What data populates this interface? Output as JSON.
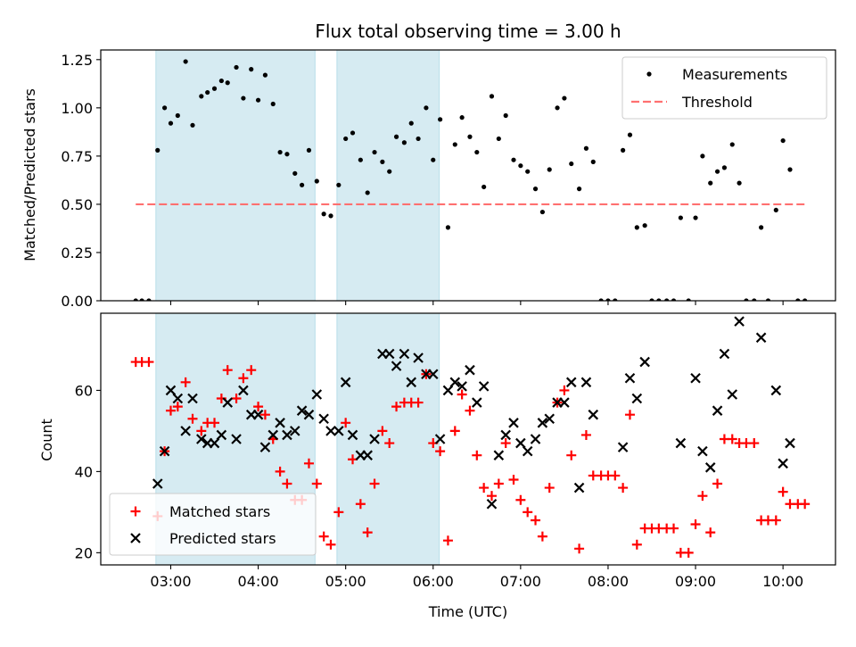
{
  "chart_data": [
    {
      "type": "scatter",
      "title": "Flux total observing time = 3.00 h",
      "ylabel": "Matched/Predicted stars",
      "xlabel": "",
      "xlim": [
        2.2,
        10.6
      ],
      "ylim": [
        0,
        1.3
      ],
      "yticks": [
        "0.00",
        "0.25",
        "0.50",
        "0.75",
        "1.00",
        "1.25"
      ],
      "ytick_values": [
        0,
        0.25,
        0.5,
        0.75,
        1.0,
        1.25
      ],
      "shaded_intervals": [
        [
          2.83,
          4.65
        ],
        [
          4.9,
          6.07
        ]
      ],
      "legend_position": "top-right",
      "threshold": {
        "name": "Threshold",
        "value": 0.5,
        "x_range": [
          2.6,
          10.25
        ],
        "color": "#ff7070"
      },
      "series": [
        {
          "name": "Measurements",
          "color": "#000000",
          "points": [
            [
              2.6,
              0
            ],
            [
              2.67,
              0
            ],
            [
              2.75,
              0
            ],
            [
              2.85,
              0.78
            ],
            [
              2.93,
              1.0
            ],
            [
              3.0,
              0.92
            ],
            [
              3.08,
              0.96
            ],
            [
              3.17,
              1.24
            ],
            [
              3.25,
              0.91
            ],
            [
              3.35,
              1.06
            ],
            [
              3.42,
              1.08
            ],
            [
              3.5,
              1.1
            ],
            [
              3.58,
              1.14
            ],
            [
              3.65,
              1.13
            ],
            [
              3.75,
              1.21
            ],
            [
              3.83,
              1.05
            ],
            [
              3.92,
              1.2
            ],
            [
              4.0,
              1.04
            ],
            [
              4.08,
              1.17
            ],
            [
              4.17,
              1.02
            ],
            [
              4.25,
              0.77
            ],
            [
              4.33,
              0.76
            ],
            [
              4.42,
              0.66
            ],
            [
              4.5,
              0.6
            ],
            [
              4.58,
              0.78
            ],
            [
              4.67,
              0.62
            ],
            [
              4.75,
              0.45
            ],
            [
              4.83,
              0.44
            ],
            [
              4.92,
              0.6
            ],
            [
              5.0,
              0.84
            ],
            [
              5.08,
              0.87
            ],
            [
              5.17,
              0.73
            ],
            [
              5.25,
              0.56
            ],
            [
              5.33,
              0.77
            ],
            [
              5.42,
              0.72
            ],
            [
              5.5,
              0.67
            ],
            [
              5.58,
              0.85
            ],
            [
              5.67,
              0.82
            ],
            [
              5.75,
              0.92
            ],
            [
              5.83,
              0.84
            ],
            [
              5.92,
              1.0
            ],
            [
              6.0,
              0.73
            ],
            [
              6.08,
              0.94
            ],
            [
              6.17,
              0.38
            ],
            [
              6.25,
              0.81
            ],
            [
              6.33,
              0.95
            ],
            [
              6.42,
              0.85
            ],
            [
              6.5,
              0.77
            ],
            [
              6.58,
              0.59
            ],
            [
              6.67,
              1.06
            ],
            [
              6.75,
              0.84
            ],
            [
              6.83,
              0.96
            ],
            [
              6.92,
              0.73
            ],
            [
              7.0,
              0.7
            ],
            [
              7.08,
              0.67
            ],
            [
              7.17,
              0.58
            ],
            [
              7.25,
              0.46
            ],
            [
              7.33,
              0.68
            ],
            [
              7.42,
              1.0
            ],
            [
              7.5,
              1.05
            ],
            [
              7.58,
              0.71
            ],
            [
              7.67,
              0.58
            ],
            [
              7.75,
              0.79
            ],
            [
              7.83,
              0.72
            ],
            [
              7.92,
              0
            ],
            [
              8.0,
              0
            ],
            [
              8.08,
              0
            ],
            [
              8.17,
              0.78
            ],
            [
              8.25,
              0.86
            ],
            [
              8.33,
              0.38
            ],
            [
              8.42,
              0.39
            ],
            [
              8.5,
              0
            ],
            [
              8.58,
              0
            ],
            [
              8.67,
              0
            ],
            [
              8.75,
              0
            ],
            [
              8.83,
              0.43
            ],
            [
              8.92,
              0
            ],
            [
              9.0,
              0.43
            ],
            [
              9.08,
              0.75
            ],
            [
              9.17,
              0.61
            ],
            [
              9.25,
              0.67
            ],
            [
              9.33,
              0.69
            ],
            [
              9.42,
              0.81
            ],
            [
              9.5,
              0.61
            ],
            [
              9.58,
              0
            ],
            [
              9.67,
              0
            ],
            [
              9.75,
              0.38
            ],
            [
              9.83,
              0
            ],
            [
              9.92,
              0.47
            ],
            [
              10.0,
              0.83
            ],
            [
              10.08,
              0.68
            ],
            [
              10.17,
              0
            ],
            [
              10.25,
              0
            ]
          ]
        }
      ]
    },
    {
      "type": "scatter",
      "title": "",
      "xlabel": "Time (UTC)",
      "ylabel": "Count",
      "xlim": [
        2.2,
        10.6
      ],
      "ylim": [
        17,
        79
      ],
      "yticks": [
        "20",
        "40",
        "60"
      ],
      "ytick_values": [
        20,
        40,
        60
      ],
      "xticks": [
        "03:00",
        "04:00",
        "05:00",
        "06:00",
        "07:00",
        "08:00",
        "09:00",
        "10:00"
      ],
      "xtick_values": [
        3,
        4,
        5,
        6,
        7,
        8,
        9,
        10
      ],
      "shaded_intervals": [
        [
          2.83,
          4.65
        ],
        [
          4.9,
          6.07
        ]
      ],
      "legend_position": "bottom-left",
      "series": [
        {
          "name": "Matched stars",
          "color": "#ff0000",
          "marker": "plus",
          "points": [
            [
              2.6,
              67
            ],
            [
              2.67,
              67
            ],
            [
              2.75,
              67
            ],
            [
              2.85,
              29
            ],
            [
              2.93,
              45
            ],
            [
              3.0,
              55
            ],
            [
              3.08,
              56
            ],
            [
              3.17,
              62
            ],
            [
              3.25,
              53
            ],
            [
              3.35,
              50
            ],
            [
              3.42,
              52
            ],
            [
              3.5,
              52
            ],
            [
              3.58,
              58
            ],
            [
              3.65,
              65
            ],
            [
              3.75,
              58
            ],
            [
              3.83,
              63
            ],
            [
              3.92,
              65
            ],
            [
              4.0,
              56
            ],
            [
              4.08,
              54
            ],
            [
              4.17,
              48
            ],
            [
              4.25,
              40
            ],
            [
              4.33,
              37
            ],
            [
              4.42,
              33
            ],
            [
              4.5,
              33
            ],
            [
              4.58,
              42
            ],
            [
              4.67,
              37
            ],
            [
              4.75,
              24
            ],
            [
              4.83,
              22
            ],
            [
              4.92,
              30
            ],
            [
              5.0,
              52
            ],
            [
              5.08,
              43
            ],
            [
              5.17,
              32
            ],
            [
              5.25,
              25
            ],
            [
              5.33,
              37
            ],
            [
              5.42,
              50
            ],
            [
              5.5,
              47
            ],
            [
              5.58,
              56
            ],
            [
              5.67,
              57
            ],
            [
              5.75,
              57
            ],
            [
              5.83,
              57
            ],
            [
              5.92,
              64
            ],
            [
              6.0,
              47
            ],
            [
              6.08,
              45
            ],
            [
              6.17,
              23
            ],
            [
              6.25,
              50
            ],
            [
              6.33,
              59
            ],
            [
              6.42,
              55
            ],
            [
              6.5,
              44
            ],
            [
              6.58,
              36
            ],
            [
              6.67,
              34
            ],
            [
              6.75,
              37
            ],
            [
              6.83,
              47
            ],
            [
              6.92,
              38
            ],
            [
              7.0,
              33
            ],
            [
              7.08,
              30
            ],
            [
              7.17,
              28
            ],
            [
              7.25,
              24
            ],
            [
              7.33,
              36
            ],
            [
              7.42,
              57
            ],
            [
              7.5,
              60
            ],
            [
              7.58,
              44
            ],
            [
              7.67,
              21
            ],
            [
              7.75,
              49
            ],
            [
              7.83,
              39
            ],
            [
              7.92,
              39
            ],
            [
              8.0,
              39
            ],
            [
              8.08,
              39
            ],
            [
              8.17,
              36
            ],
            [
              8.25,
              54
            ],
            [
              8.33,
              22
            ],
            [
              8.42,
              26
            ],
            [
              8.5,
              26
            ],
            [
              8.58,
              26
            ],
            [
              8.67,
              26
            ],
            [
              8.75,
              26
            ],
            [
              8.83,
              20
            ],
            [
              8.92,
              20
            ],
            [
              9.0,
              27
            ],
            [
              9.08,
              34
            ],
            [
              9.17,
              25
            ],
            [
              9.25,
              37
            ],
            [
              9.33,
              48
            ],
            [
              9.42,
              48
            ],
            [
              9.5,
              47
            ],
            [
              9.58,
              47
            ],
            [
              9.67,
              47
            ],
            [
              9.75,
              28
            ],
            [
              9.83,
              28
            ],
            [
              9.92,
              28
            ],
            [
              10.0,
              35
            ],
            [
              10.08,
              32
            ],
            [
              10.17,
              32
            ],
            [
              10.25,
              32
            ]
          ]
        },
        {
          "name": "Predicted stars",
          "color": "#000000",
          "marker": "x",
          "points": [
            [
              2.85,
              37
            ],
            [
              2.93,
              45
            ],
            [
              3.0,
              60
            ],
            [
              3.08,
              58
            ],
            [
              3.17,
              50
            ],
            [
              3.25,
              58
            ],
            [
              3.35,
              48
            ],
            [
              3.42,
              47
            ],
            [
              3.5,
              47
            ],
            [
              3.58,
              49
            ],
            [
              3.65,
              57
            ],
            [
              3.75,
              48
            ],
            [
              3.83,
              60
            ],
            [
              3.92,
              54
            ],
            [
              4.0,
              54
            ],
            [
              4.08,
              46
            ],
            [
              4.17,
              49
            ],
            [
              4.25,
              52
            ],
            [
              4.33,
              49
            ],
            [
              4.42,
              50
            ],
            [
              4.5,
              55
            ],
            [
              4.58,
              54
            ],
            [
              4.67,
              59
            ],
            [
              4.75,
              53
            ],
            [
              4.83,
              50
            ],
            [
              4.92,
              50
            ],
            [
              5.0,
              62
            ],
            [
              5.08,
              49
            ],
            [
              5.17,
              44
            ],
            [
              5.25,
              44
            ],
            [
              5.33,
              48
            ],
            [
              5.42,
              69
            ],
            [
              5.5,
              69
            ],
            [
              5.58,
              66
            ],
            [
              5.67,
              69
            ],
            [
              5.75,
              62
            ],
            [
              5.83,
              68
            ],
            [
              5.92,
              64
            ],
            [
              6.0,
              64
            ],
            [
              6.08,
              48
            ],
            [
              6.17,
              60
            ],
            [
              6.25,
              62
            ],
            [
              6.33,
              61
            ],
            [
              6.42,
              65
            ],
            [
              6.5,
              57
            ],
            [
              6.58,
              61
            ],
            [
              6.67,
              32
            ],
            [
              6.75,
              44
            ],
            [
              6.83,
              49
            ],
            [
              6.92,
              52
            ],
            [
              7.0,
              47
            ],
            [
              7.08,
              45
            ],
            [
              7.17,
              48
            ],
            [
              7.25,
              52
            ],
            [
              7.33,
              53
            ],
            [
              7.42,
              57
            ],
            [
              7.5,
              57
            ],
            [
              7.58,
              62
            ],
            [
              7.67,
              36
            ],
            [
              7.75,
              62
            ],
            [
              7.83,
              54
            ],
            [
              8.17,
              46
            ],
            [
              8.25,
              63
            ],
            [
              8.33,
              58
            ],
            [
              8.42,
              67
            ],
            [
              8.83,
              47
            ],
            [
              9.0,
              63
            ],
            [
              9.08,
              45
            ],
            [
              9.17,
              41
            ],
            [
              9.25,
              55
            ],
            [
              9.33,
              69
            ],
            [
              9.42,
              59
            ],
            [
              9.5,
              77
            ],
            [
              9.75,
              73
            ],
            [
              9.92,
              60
            ],
            [
              10.0,
              42
            ],
            [
              10.08,
              47
            ]
          ]
        }
      ]
    }
  ]
}
